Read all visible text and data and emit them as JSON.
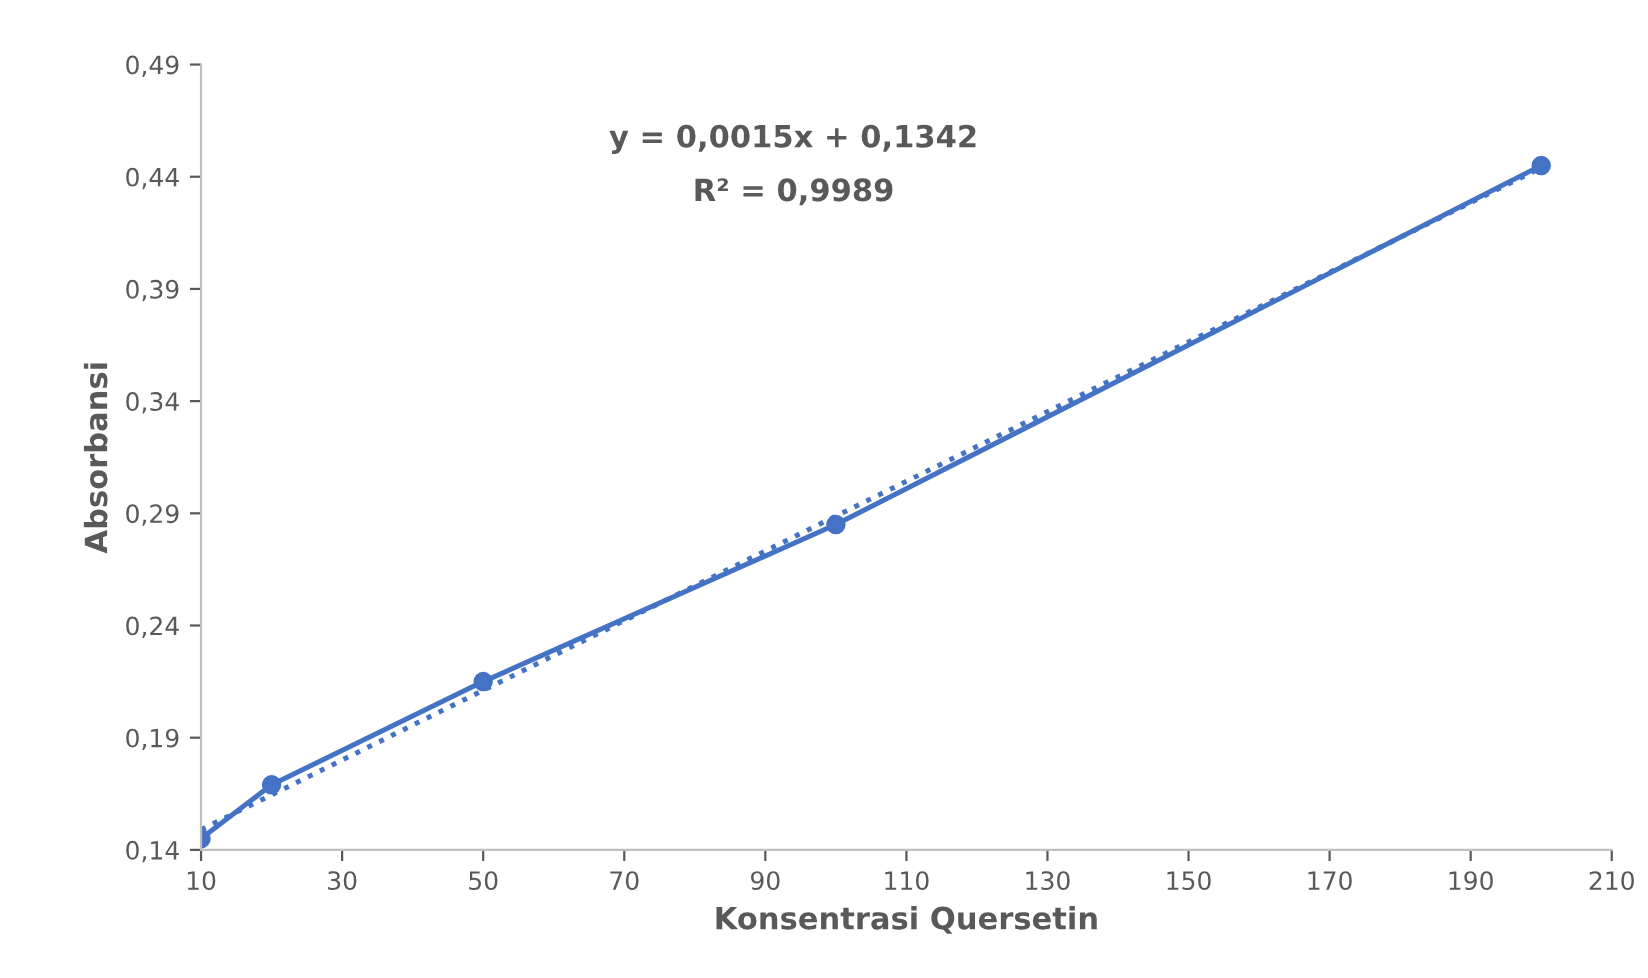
{
  "chart_data": {
    "type": "line",
    "xlabel": "Konsentrasi Quersetin",
    "ylabel": "Absorbansi",
    "annotations": [
      "y = 0,0015x + 0,1342",
      "R² = 0,9989"
    ],
    "series": [
      {
        "color": "#4472c4",
        "x": [
          10,
          20,
          50,
          100,
          200
        ],
        "values": [
          0.145,
          0.169,
          0.215,
          0.285,
          0.445
        ],
        "marker": "circle",
        "line_style": "solid"
      },
      {
        "type": "line",
        "color": "#4472c4",
        "x": [
          10,
          200
        ],
        "values": [
          0.149,
          0.444
        ],
        "marker": "none",
        "line_style": "dotted"
      }
    ],
    "xlim": [
      10,
      210
    ],
    "xticks": [
      10,
      30,
      50,
      70,
      90,
      110,
      130,
      150,
      170,
      190,
      210
    ],
    "ylim": [
      0.14,
      0.49
    ],
    "yticks": [
      {
        "value": 0.14,
        "label": "0,14"
      },
      {
        "value": 0.19,
        "label": "0,19"
      },
      {
        "value": 0.24,
        "label": "0,24"
      },
      {
        "value": 0.29,
        "label": "0,29"
      },
      {
        "value": 0.34,
        "label": "0,34"
      },
      {
        "value": 0.39,
        "label": "0,39"
      },
      {
        "value": 0.44,
        "label": "0,44"
      },
      {
        "value": 0.49,
        "label": "0,49"
      }
    ],
    "grid": false,
    "legend": false
  }
}
